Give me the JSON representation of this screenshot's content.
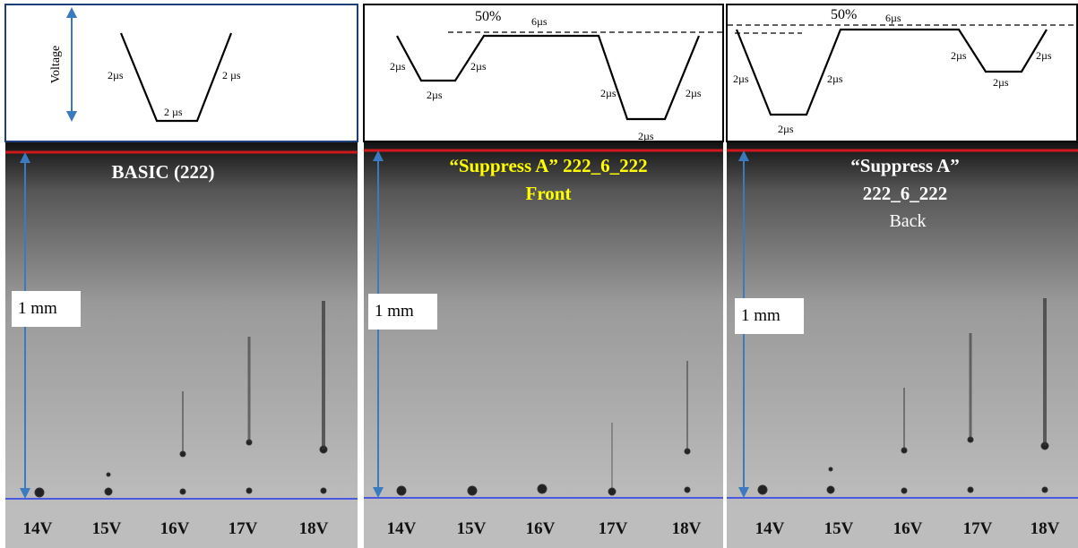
{
  "panels": [
    {
      "waveform": {
        "axis_label": "Voltage",
        "labels": [
          "2µs",
          "2 µs",
          "2 µs"
        ]
      },
      "title": [
        "BASIC (222)"
      ],
      "scale_label": "1 mm",
      "voltages": [
        "14V",
        "15V",
        "16V",
        "17V",
        "18V"
      ]
    },
    {
      "waveform": {
        "level_label": "50%",
        "labels": [
          "6µs",
          "2µs",
          "2µs",
          "2µs",
          "2µs",
          "2µs",
          "2µs"
        ]
      },
      "title": [
        "“Suppress A” 222_6_222",
        "Front"
      ],
      "scale_label": "1 mm",
      "voltages": [
        "14V",
        "15V",
        "16V",
        "17V",
        "18V"
      ]
    },
    {
      "waveform": {
        "level_label": "50%",
        "labels": [
          "6µs",
          "2µs",
          "2µs",
          "2µs",
          "2µs",
          "2µs",
          "2µs"
        ]
      },
      "title": [
        "“Suppress A”",
        "222_6_222",
        "Back"
      ],
      "scale_label": "1 mm",
      "voltages": [
        "14V",
        "15V",
        "16V",
        "17V",
        "18V"
      ]
    }
  ]
}
